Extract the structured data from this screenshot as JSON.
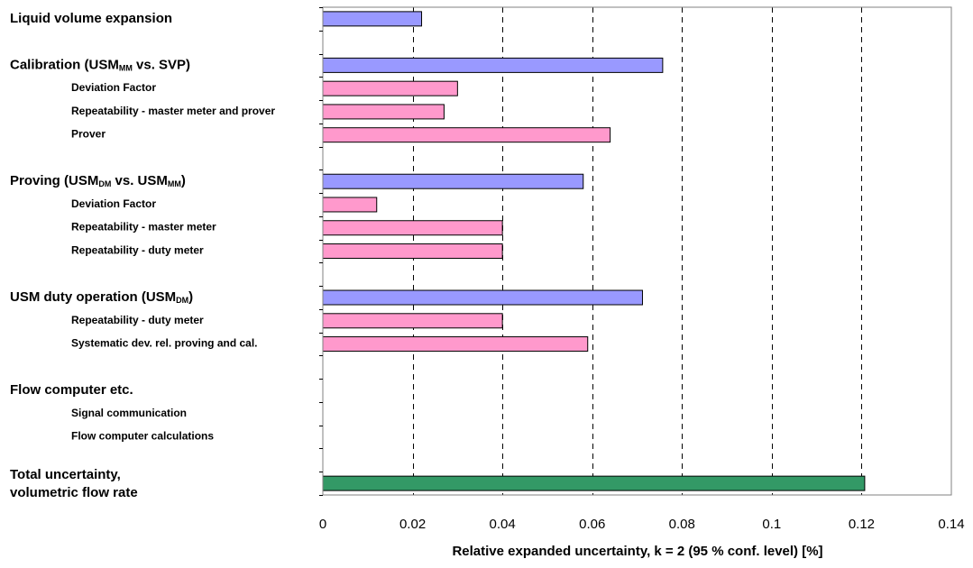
{
  "chart_data": {
    "type": "bar",
    "orientation": "horizontal",
    "xlabel": "Relative expanded uncertainty, k = 2 (95 % conf. level)  [%]",
    "ylabel": "",
    "title": "",
    "xlim": [
      0,
      0.14
    ],
    "xticks": [
      "0",
      "0.02",
      "0.04",
      "0.06",
      "0.08",
      "0.1",
      "0.12",
      "0.14"
    ],
    "grid": "vertical dashed",
    "colors": {
      "group": "#9999ff",
      "component": "#ff99cc",
      "total": "#339966",
      "outline": "#000000"
    },
    "rows": [
      {
        "label": "Liquid volume expansion",
        "sub": "",
        "tail": "",
        "level": "group",
        "value": 0.022
      },
      {
        "label": "",
        "sub": "",
        "tail": "",
        "level": "spacer",
        "value": null
      },
      {
        "label": "Calibration (USM",
        "sub": "MM",
        "tail": " vs. SVP)",
        "level": "group",
        "value": 0.0757
      },
      {
        "label": "Deviation Factor",
        "sub": "",
        "tail": "",
        "level": "component",
        "value": 0.03
      },
      {
        "label": "Repeatability - master meter and prover",
        "sub": "",
        "tail": "",
        "level": "component",
        "value": 0.027
      },
      {
        "label": "Prover",
        "sub": "",
        "tail": "",
        "level": "component",
        "value": 0.064
      },
      {
        "label": "",
        "sub": "",
        "tail": "",
        "level": "spacer",
        "value": null
      },
      {
        "label": "Proving (USM",
        "sub": "DM",
        "tail": " vs. USM",
        "sub2": "MM",
        "tail2": ")",
        "level": "group",
        "value": 0.058
      },
      {
        "label": "Deviation Factor",
        "sub": "",
        "tail": "",
        "level": "component",
        "value": 0.012
      },
      {
        "label": "Repeatability - master meter",
        "sub": "",
        "tail": "",
        "level": "component",
        "value": 0.04
      },
      {
        "label": "Repeatability - duty meter",
        "sub": "",
        "tail": "",
        "level": "component",
        "value": 0.04
      },
      {
        "label": "",
        "sub": "",
        "tail": "",
        "level": "spacer",
        "value": null
      },
      {
        "label": "USM duty operation (USM",
        "sub": "DM",
        "tail": ")",
        "level": "group",
        "value": 0.0712
      },
      {
        "label": "Repeatability - duty meter",
        "sub": "",
        "tail": "",
        "level": "component",
        "value": 0.04
      },
      {
        "label": "Systematic dev. rel. proving and cal.",
        "sub": "",
        "tail": "",
        "level": "component",
        "value": 0.059
      },
      {
        "label": "",
        "sub": "",
        "tail": "",
        "level": "spacer",
        "value": null
      },
      {
        "label": "Flow computer etc.",
        "sub": "",
        "tail": "",
        "level": "group",
        "value": 0
      },
      {
        "label": "Signal communication",
        "sub": "",
        "tail": "",
        "level": "component",
        "value": 0
      },
      {
        "label": "Flow computer calculations",
        "sub": "",
        "tail": "",
        "level": "component",
        "value": 0
      },
      {
        "label": "",
        "sub": "",
        "tail": "",
        "level": "spacer",
        "value": null
      },
      {
        "label": "Total uncertainty,",
        "label2": "volumetric flow rate",
        "sub": "",
        "tail": "",
        "level": "total",
        "value": 0.1207
      }
    ]
  }
}
